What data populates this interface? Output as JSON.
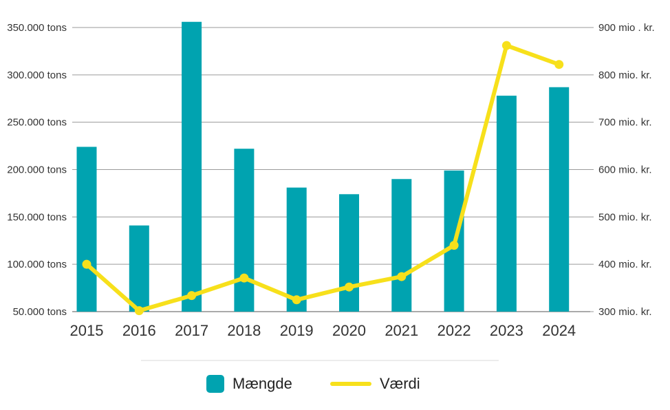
{
  "chart_data": {
    "type": "bar+line",
    "categories": [
      "2015",
      "2016",
      "2017",
      "2018",
      "2019",
      "2020",
      "2021",
      "2022",
      "2023",
      "2024"
    ],
    "series": [
      {
        "name": "Mængde",
        "type": "bar",
        "axis": "left",
        "color": "#00a3b0",
        "values": [
          224000,
          141000,
          356000,
          222000,
          181000,
          174000,
          190000,
          199000,
          278000,
          287000
        ]
      },
      {
        "name": "Værdi",
        "type": "line",
        "axis": "right",
        "color": "#f7e01b",
        "values": [
          400,
          302,
          334,
          371,
          325,
          352,
          374,
          440,
          862,
          822
        ]
      }
    ],
    "left_axis": {
      "range": [
        50000,
        350000
      ],
      "ticks": [
        {
          "value": 350000,
          "label": "350.000 tons"
        },
        {
          "value": 300000,
          "label": "300.000 tons"
        },
        {
          "value": 250000,
          "label": "250.000 tons"
        },
        {
          "value": 200000,
          "label": "200.000 tons"
        },
        {
          "value": 150000,
          "label": "150.000 tons"
        },
        {
          "value": 100000,
          "label": "100.000 tons"
        },
        {
          "value": 50000,
          "label": "50.000 tons"
        }
      ]
    },
    "right_axis": {
      "range": [
        300,
        900
      ],
      "ticks": [
        {
          "value": 900,
          "label": "900 mio . kr."
        },
        {
          "value": 800,
          "label": "800 mio. kr."
        },
        {
          "value": 700,
          "label": "700 mio. kr."
        },
        {
          "value": 600,
          "label": "600 mio. kr."
        },
        {
          "value": 500,
          "label": "500 mio. kr."
        },
        {
          "value": 400,
          "label": "400 mio. kr."
        },
        {
          "value": 300,
          "label": "300 mio. kr."
        }
      ]
    },
    "grid": true,
    "legend": {
      "position": "bottom-center",
      "items": [
        {
          "label": "Mængde",
          "kind": "bar",
          "color": "#00a3b0"
        },
        {
          "label": "Værdi",
          "kind": "line",
          "color": "#f7e01b"
        }
      ]
    }
  }
}
